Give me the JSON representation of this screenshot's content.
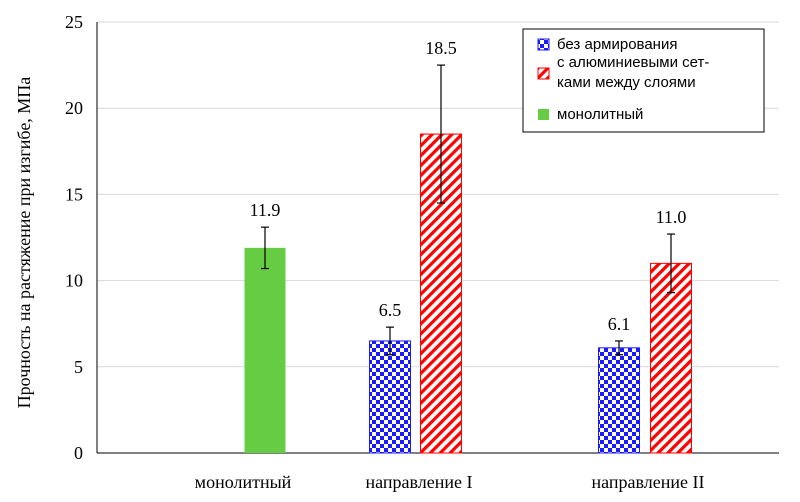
{
  "chart_data": {
    "type": "bar",
    "title": "",
    "xlabel": "",
    "ylabel": "Прочность на растяжение при изгибе, МПа",
    "ylim": [
      0,
      25
    ],
    "yticks": [
      0,
      5,
      10,
      15,
      20,
      25
    ],
    "grid": true,
    "legend_position": "top-right",
    "groups": [
      "монолитный",
      "направление I",
      "направление II"
    ],
    "series": [
      {
        "name": "без армирования",
        "pattern": "checker",
        "color": "#1a1aff",
        "bars": [
          {
            "group": "направление I",
            "value": 6.5,
            "error": 0.8
          },
          {
            "group": "направление II",
            "value": 6.1,
            "error": 0.4
          }
        ]
      },
      {
        "name": "с алюминиевыми сетками между слоями",
        "legend_lines": [
          "с алюминиевыми сет-",
          "ками между слоями"
        ],
        "pattern": "hatch",
        "color": "#ff0000",
        "bars": [
          {
            "group": "направление I",
            "value": 18.5,
            "error": 4.0
          },
          {
            "group": "направление II",
            "value": 11.0,
            "error": 1.7
          }
        ]
      },
      {
        "name": "монолитный",
        "pattern": "solid",
        "color": "#66cc44",
        "bars": [
          {
            "group": "монолитный",
            "value": 11.9,
            "error": 1.2
          }
        ]
      }
    ],
    "data_labels": [
      {
        "group": "монолитный",
        "series": "монолитный",
        "text": "11.9"
      },
      {
        "group": "направление I",
        "series": "без армирования",
        "text": "6.5"
      },
      {
        "group": "направление I",
        "series": "с алюминиевыми сетками между слоями",
        "text": "18.5"
      },
      {
        "group": "направление II",
        "series": "без армирования",
        "text": "6.1"
      },
      {
        "group": "направление II",
        "series": "с алюминиевыми сетками между слоями",
        "text": "11.0"
      }
    ]
  }
}
